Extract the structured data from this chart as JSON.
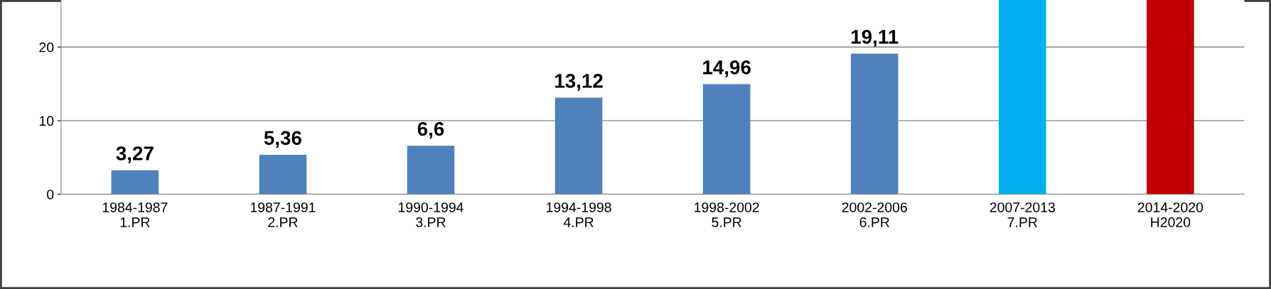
{
  "chart_data": {
    "type": "bar",
    "categories": [
      "1984-1987\n1.PR",
      "1987-1991\n2.PR",
      "1990-1994\n3.PR",
      "1994-1998\n4.PR",
      "1998-2002\n5.PR",
      "2002-2006\n6.PR",
      "2007-2013\n7.PR",
      "2014-2020\nH2020"
    ],
    "values": [
      3.27,
      5.36,
      6.6,
      13.12,
      14.96,
      19.11,
      26.4,
      26.4
    ],
    "colors": [
      "#4f81bd",
      "#4f81bd",
      "#4f81bd",
      "#4f81bd",
      "#4f81bd",
      "#4f81bd",
      "#00b0f0",
      "#c00000"
    ],
    "value_labels": [
      "3,27",
      "5,36",
      "6,6",
      "13,12",
      "14,96",
      "19,11",
      null,
      null
    ],
    "ylim": [
      0,
      26.4
    ],
    "yticks": [
      0,
      10,
      20
    ],
    "grid": "y"
  }
}
